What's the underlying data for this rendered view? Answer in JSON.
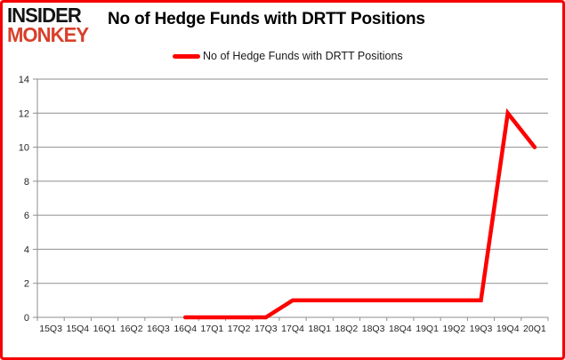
{
  "logo": {
    "line1": "INSIDER",
    "line2": "MONKEY"
  },
  "title": "No of Hedge Funds with DRTT Positions",
  "legend": {
    "label": "No of Hedge Funds with DRTT Positions"
  },
  "colors": {
    "series": "#fd0000",
    "card_border": "#f40000",
    "grid": "#8e8e8e",
    "axis_text": "#262626",
    "logo_black": "#141414",
    "logo_red": "#d8402a"
  },
  "chart_data": {
    "type": "line",
    "title": "No of Hedge Funds with DRTT Positions",
    "xlabel": "",
    "ylabel": "",
    "categories": [
      "15Q3",
      "15Q4",
      "16Q1",
      "16Q2",
      "16Q3",
      "16Q4",
      "17Q1",
      "17Q2",
      "17Q3",
      "17Q4",
      "18Q1",
      "18Q2",
      "18Q3",
      "18Q4",
      "19Q1",
      "19Q2",
      "19Q3",
      "19Q4",
      "20Q1"
    ],
    "series": [
      {
        "name": "No of Hedge Funds with DRTT Positions",
        "values": [
          null,
          null,
          null,
          null,
          null,
          0,
          0,
          0,
          0,
          1,
          1,
          1,
          1,
          1,
          1,
          1,
          1,
          12,
          10
        ]
      }
    ],
    "ylim": [
      0,
      14
    ],
    "ytick_step": 2,
    "grid": true,
    "legend_position": "top"
  }
}
